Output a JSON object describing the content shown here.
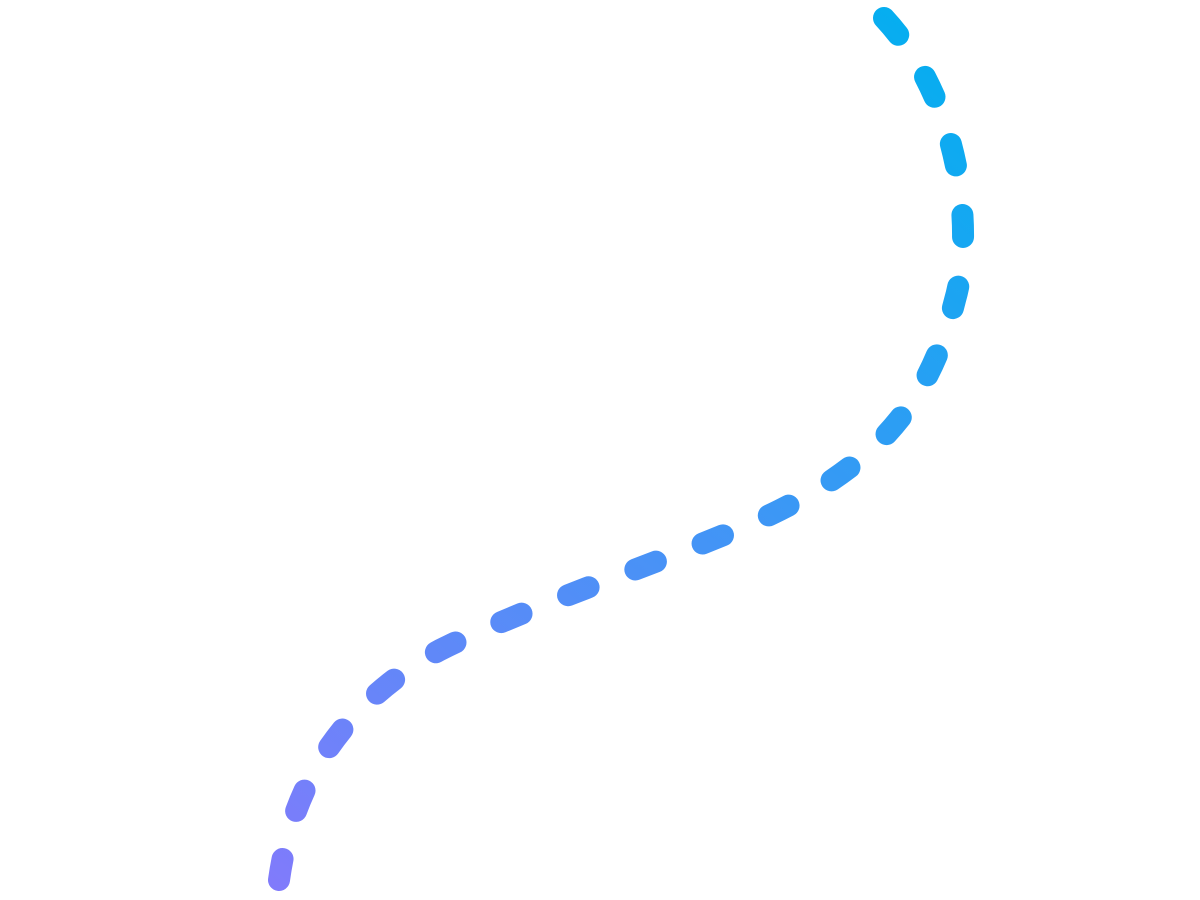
{
  "decoration": {
    "stroke_start": "#05aef0",
    "stroke_end": "#807bfb"
  }
}
